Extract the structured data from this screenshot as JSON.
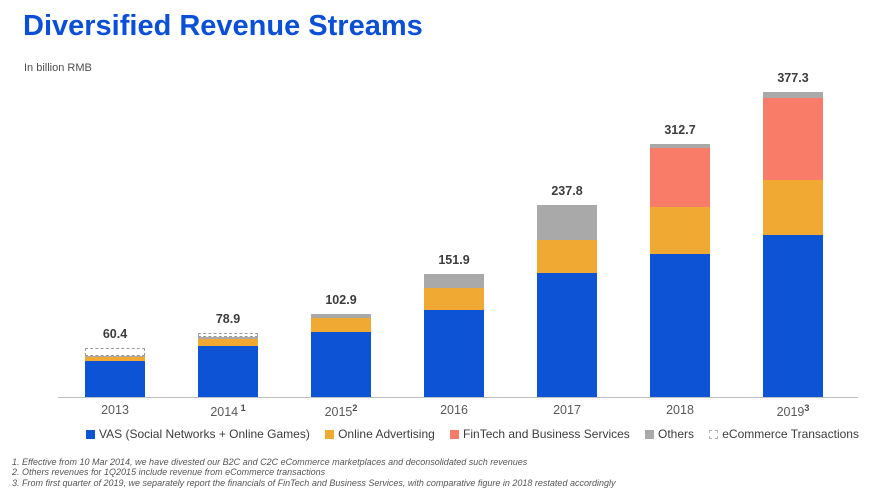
{
  "page": {
    "title": "Diversified Revenue Streams",
    "subtitle": "In billion RMB"
  },
  "chart_data": {
    "type": "bar",
    "stacked": true,
    "title": "Diversified Revenue Streams",
    "unit": "billion RMB",
    "ylim": [
      0,
      400
    ],
    "grid": false,
    "legend_position": "bottom",
    "categories": [
      "2013",
      "2014",
      "2015",
      "2016",
      "2017",
      "2018",
      "2019"
    ],
    "category_footnote_refs": [
      "",
      " 1",
      "2",
      "",
      "",
      "",
      "3"
    ],
    "totals_labels": [
      "60.4",
      "78.9",
      "102.9",
      "151.9",
      "237.8",
      "312.7",
      "377.3"
    ],
    "series": [
      {
        "name": "VAS (Social Networks + Online Games)",
        "color": "#0d53d6",
        "values": [
          45.0,
          63.3,
          80.7,
          107.8,
          154.0,
          176.6,
          200.0
        ]
      },
      {
        "name": "Online Advertising",
        "color": "#f0a933",
        "values": [
          5.0,
          8.3,
          17.5,
          27.0,
          40.4,
          58.1,
          68.4
        ]
      },
      {
        "name": "FinTech and Business Services",
        "color": "#f97c68",
        "values": [
          0,
          0,
          0,
          0,
          0,
          73.1,
          101.4
        ]
      },
      {
        "name": "Others",
        "color": "#a9a9a9",
        "values": [
          0.6,
          2.7,
          4.7,
          17.1,
          43.4,
          4.9,
          7.5
        ]
      },
      {
        "name": "eCommerce Transactions",
        "color": "#ffffff",
        "style": "dashed",
        "values": [
          9.8,
          4.6,
          0,
          0,
          0,
          0,
          0
        ]
      }
    ]
  },
  "footnotes": [
    "1. Effective from 10 Mar 2014, we have divested our B2C and C2C eCommerce marketplaces and deconsolidated such revenues",
    "2. Others revenues for 1Q2015 include revenue from eCommerce transactions",
    "3. From first quarter of 2019, we separately report the financials of FinTech and Business Services, with comparative figure in 2018 restated accordingly"
  ]
}
